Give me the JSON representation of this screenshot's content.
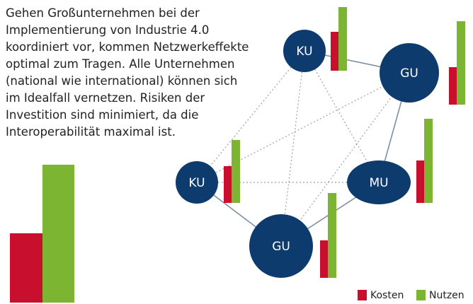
{
  "text": {
    "lines": [
      "Gehen Großunternehmen bei der",
      "Implementierung von Industrie 4.0",
      "koordiniert vor, kommen Netzwerkeffekte",
      "optimal zum Tragen. Alle Unternehmen",
      "(national wie international) können sich",
      "im Idealfall vernetzen. Risiken der",
      "Investition sind minimiert, da die",
      "Interoperabilität maximal ist."
    ]
  },
  "nodes": [
    {
      "label": "KU"
    },
    {
      "label": "GU"
    },
    {
      "label": "KU"
    },
    {
      "label": "MU"
    },
    {
      "label": "GU"
    }
  ],
  "legend": {
    "items": [
      "Kosten",
      "Nutzen"
    ]
  }
}
